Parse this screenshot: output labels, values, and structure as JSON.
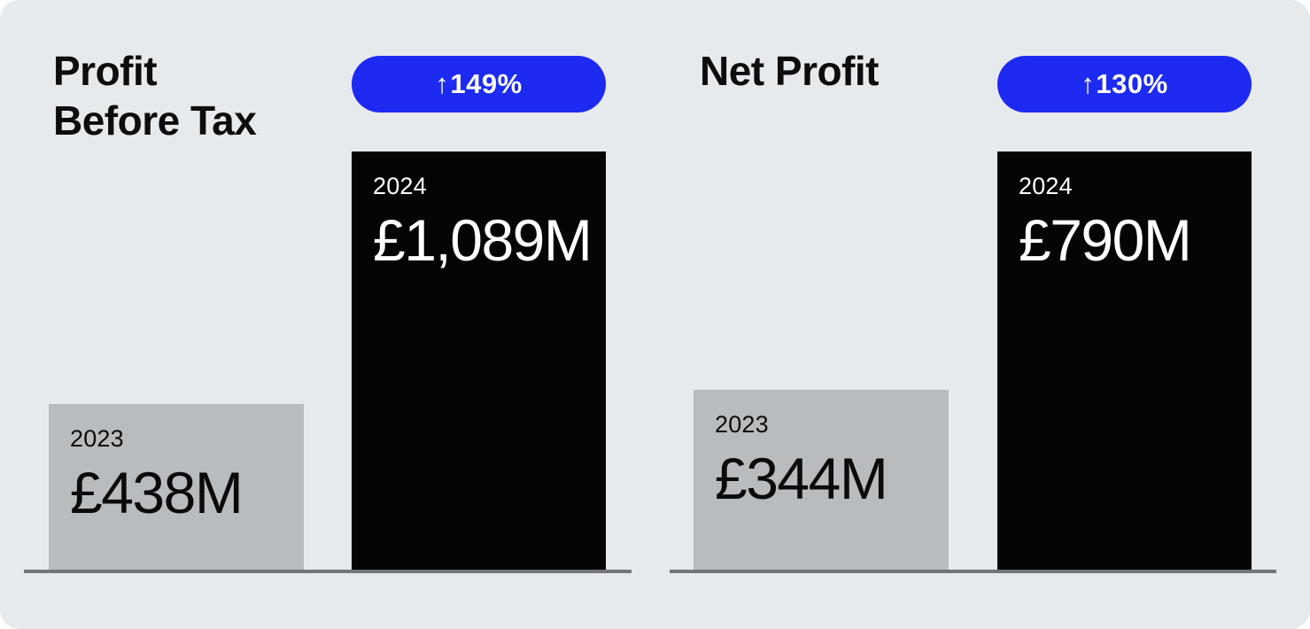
{
  "colors": {
    "card_background": "#e7eaec",
    "accent_blue": "#1d2af2",
    "bar_2024_color": "#050505",
    "bar_2023_color": "#b9bcbe",
    "baseline_color": "#71767b",
    "title_text": "#0d0d0d",
    "badge_text": "#ffffff"
  },
  "charts": [
    {
      "title": "Profit Before Tax",
      "badge_arrow": "↑",
      "badge_text": "149%",
      "bars": [
        {
          "year": "2023",
          "value_label": "£438M"
        },
        {
          "year": "2024",
          "value_label": "£1,089M"
        }
      ]
    },
    {
      "title": "Net Profit",
      "badge_arrow": "↑",
      "badge_text": "130%",
      "bars": [
        {
          "year": "2023",
          "value_label": "£344M"
        },
        {
          "year": "2024",
          "value_label": "£790M"
        }
      ]
    }
  ],
  "chart_data": [
    {
      "type": "bar",
      "title": "Profit Before Tax",
      "categories": [
        "2023",
        "2024"
      ],
      "values": [
        438,
        1089
      ],
      "unit": "GBP millions",
      "value_labels": [
        "£438M",
        "£1,089M"
      ],
      "annotations": [
        "↑149%"
      ],
      "ylim": [
        0,
        1089
      ],
      "grid": false,
      "legend": false,
      "bar_colors": [
        "#b9bcbe",
        "#050505"
      ]
    },
    {
      "type": "bar",
      "title": "Net Profit",
      "categories": [
        "2023",
        "2024"
      ],
      "values": [
        344,
        790
      ],
      "unit": "GBP millions",
      "value_labels": [
        "£344M",
        "£790M"
      ],
      "annotations": [
        "↑130%"
      ],
      "ylim": [
        0,
        790
      ],
      "grid": false,
      "legend": false,
      "bar_colors": [
        "#b9bcbe",
        "#050505"
      ]
    }
  ]
}
